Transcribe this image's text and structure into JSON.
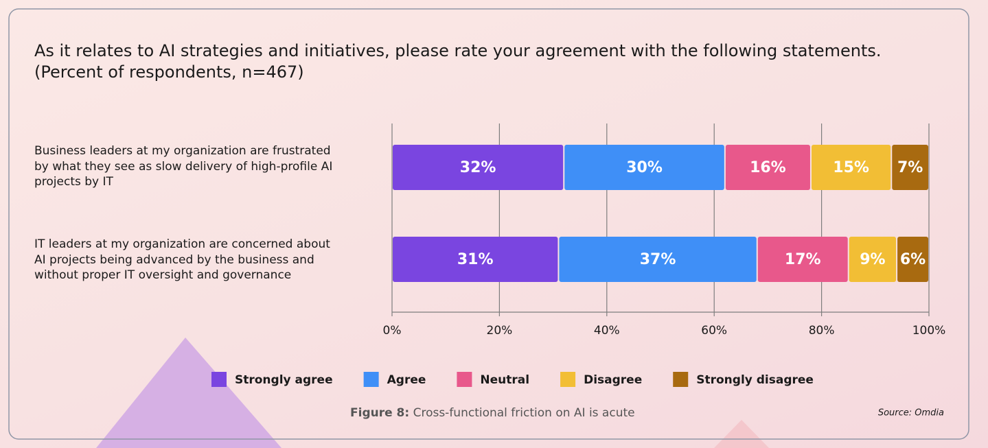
{
  "chart_data": {
    "type": "stacked-bar-horizontal",
    "title": "As it relates to AI strategies and initiatives, please rate your agreement with the following statements.",
    "subtitle": "(Percent of respondents, n=467)",
    "categories": [
      "Business leaders at my organization are frustrated by what they see as slow delivery of high-profile AI projects by IT",
      "IT leaders at my organization are concerned about AI projects being advanced by the business and without proper IT oversight and governance"
    ],
    "series": [
      {
        "name": "Strongly agree",
        "color": "#7a45e0",
        "values": [
          32,
          31
        ],
        "value_labels": [
          "32%",
          "31%"
        ]
      },
      {
        "name": "Agree",
        "color": "#3f8ff7",
        "values": [
          30,
          37
        ],
        "value_labels": [
          "30%",
          "37%"
        ]
      },
      {
        "name": "Neutral",
        "color": "#e8588b",
        "values": [
          16,
          17
        ],
        "value_labels": [
          "16%",
          "17%"
        ]
      },
      {
        "name": "Disagree",
        "color": "#f2be35",
        "values": [
          15,
          9
        ],
        "value_labels": [
          "15%",
          "9%"
        ]
      },
      {
        "name": "Strongly disagree",
        "color": "#a86a10",
        "values": [
          7,
          6
        ],
        "value_labels": [
          "7%",
          "6%"
        ]
      }
    ],
    "xlim": [
      0,
      100
    ],
    "xticks": [
      {
        "value": 0,
        "label": "0%"
      },
      {
        "value": 20,
        "label": "20%"
      },
      {
        "value": 40,
        "label": "40%"
      },
      {
        "value": 60,
        "label": "60%"
      },
      {
        "value": 80,
        "label": "80%"
      },
      {
        "value": 100,
        "label": "100%"
      }
    ],
    "grid": true,
    "legend_position": "bottom",
    "caption_label": "Figure 8:",
    "caption": "Cross-functional friction on AI is acute",
    "source": "Source: Omdia"
  }
}
